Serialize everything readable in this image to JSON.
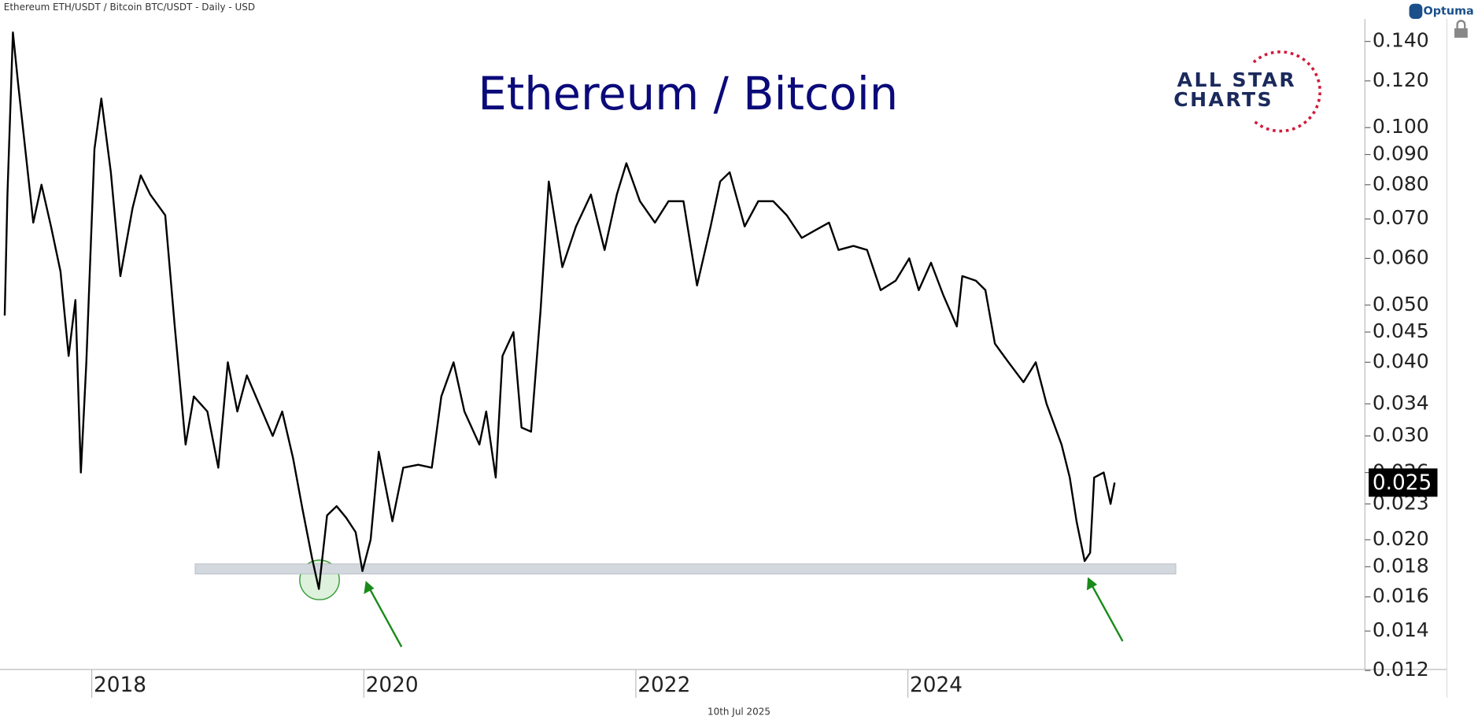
{
  "header": "Ethereum ETH/USDT / Bitcoin BTC/USDT - Daily - USD",
  "brand": "Optuma",
  "logo": [
    "ALL STAR",
    "CHARTS"
  ],
  "footer": "10th Jul 2025",
  "chart_data": {
    "type": "line",
    "title": "Ethereum / Bitcoin",
    "color": "#000000",
    "log_y": true,
    "grid": false,
    "x": [
      2017.36,
      2017.38,
      2017.42,
      2017.46,
      2017.52,
      2017.57,
      2017.63,
      2017.7,
      2017.77,
      2017.83,
      2017.88,
      2017.92,
      2017.96,
      2018.02,
      2018.07,
      2018.14,
      2018.21,
      2018.3,
      2018.36,
      2018.43,
      2018.54,
      2018.61,
      2018.69,
      2018.75,
      2018.85,
      2018.93,
      2019.0,
      2019.07,
      2019.14,
      2019.23,
      2019.33,
      2019.4,
      2019.48,
      2019.55,
      2019.62,
      2019.67,
      2019.73,
      2019.8,
      2019.87,
      2019.94,
      2019.99,
      2020.05,
      2020.11,
      2020.21,
      2020.29,
      2020.4,
      2020.5,
      2020.57,
      2020.66,
      2020.74,
      2020.85,
      2020.9,
      2020.97,
      2021.02,
      2021.1,
      2021.16,
      2021.23,
      2021.3,
      2021.36,
      2021.46,
      2021.56,
      2021.67,
      2021.77,
      2021.86,
      2021.93,
      2022.03,
      2022.14,
      2022.24,
      2022.35,
      2022.45,
      2022.55,
      2022.62,
      2022.69,
      2022.8,
      2022.9,
      2023.01,
      2023.11,
      2023.22,
      2023.32,
      2023.42,
      2023.49,
      2023.6,
      2023.7,
      2023.8,
      2023.91,
      2024.01,
      2024.08,
      2024.17,
      2024.26,
      2024.36,
      2024.4,
      2024.5,
      2024.57,
      2024.64,
      2024.74,
      2024.85,
      2024.94,
      2025.02,
      2025.13,
      2025.19,
      2025.24,
      2025.3,
      2025.34,
      2025.37,
      2025.44,
      2025.49,
      2025.52
    ],
    "values": [
      0.048,
      0.077,
      0.145,
      0.118,
      0.088,
      0.069,
      0.08,
      0.068,
      0.057,
      0.041,
      0.051,
      0.026,
      0.04,
      0.092,
      0.112,
      0.084,
      0.056,
      0.073,
      0.083,
      0.077,
      0.071,
      0.046,
      0.029,
      0.035,
      0.033,
      0.0265,
      0.04,
      0.033,
      0.038,
      0.034,
      0.03,
      0.033,
      0.0275,
      0.0225,
      0.0186,
      0.0165,
      0.022,
      0.0228,
      0.0218,
      0.0206,
      0.0177,
      0.02,
      0.0282,
      0.0215,
      0.0265,
      0.0268,
      0.0265,
      0.035,
      0.04,
      0.033,
      0.029,
      0.033,
      0.0255,
      0.041,
      0.045,
      0.031,
      0.0305,
      0.049,
      0.081,
      0.058,
      0.068,
      0.077,
      0.062,
      0.077,
      0.087,
      0.075,
      0.069,
      0.075,
      0.075,
      0.054,
      0.068,
      0.081,
      0.084,
      0.068,
      0.075,
      0.075,
      0.071,
      0.065,
      0.067,
      0.069,
      0.062,
      0.063,
      0.062,
      0.053,
      0.055,
      0.06,
      0.053,
      0.059,
      0.052,
      0.046,
      0.056,
      0.055,
      0.053,
      0.043,
      0.04,
      0.037,
      0.04,
      0.034,
      0.029,
      0.0255,
      0.0215,
      0.0184,
      0.019,
      0.0255,
      0.026,
      0.023,
      0.025
    ],
    "last_label": 0.025,
    "xlim": [
      2017.36,
      2027.36
    ],
    "xticks": [
      2018,
      2020,
      2022,
      2024
    ],
    "ylim": [
      0.01205,
      0.1529
    ],
    "yticks": [
      {
        "value": 0.14,
        "label": "0.140"
      },
      {
        "value": 0.12,
        "label": "0.120"
      },
      {
        "value": 0.1,
        "label": "0.100"
      },
      {
        "value": 0.09,
        "label": "0.090"
      },
      {
        "value": 0.08,
        "label": "0.080"
      },
      {
        "value": 0.07,
        "label": "0.070"
      },
      {
        "value": 0.06,
        "label": "0.060"
      },
      {
        "value": 0.05,
        "label": "0.050"
      },
      {
        "value": 0.045,
        "label": "0.045"
      },
      {
        "value": 0.04,
        "label": "0.040"
      },
      {
        "value": 0.034,
        "label": "0.034"
      },
      {
        "value": 0.03,
        "label": "0.030"
      },
      {
        "value": 0.026,
        "label": "0.026"
      },
      {
        "value": 0.023,
        "label": "0.023"
      },
      {
        "value": 0.02,
        "label": "0.020"
      },
      {
        "value": 0.018,
        "label": "0.018"
      },
      {
        "value": 0.016,
        "label": "0.016"
      },
      {
        "value": 0.014,
        "label": "0.014"
      },
      {
        "value": 0.012,
        "label": "0.012"
      }
    ],
    "band": [
      0.0175,
      0.0182
    ],
    "band_x": [
      2018.76,
      2025.97
    ]
  }
}
